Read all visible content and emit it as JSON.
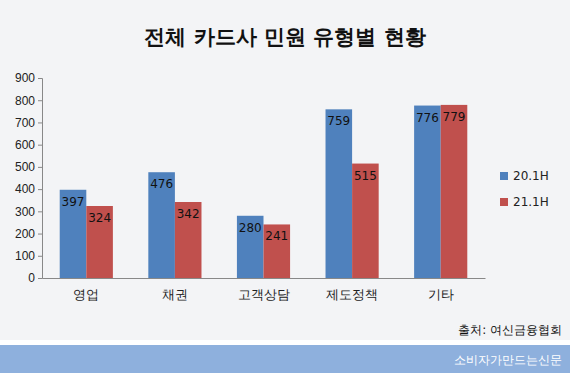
{
  "chart_data": {
    "type": "bar",
    "title": "전체 카드사 민원 유형별 현황",
    "categories": [
      "영업",
      "채권",
      "고객상담",
      "제도정책",
      "기타"
    ],
    "series": [
      {
        "name": "20.1H",
        "color": "#4f81bd",
        "values": [
          397,
          476,
          280,
          759,
          776
        ]
      },
      {
        "name": "21.1H",
        "color": "#c0504d",
        "values": [
          324,
          342,
          241,
          515,
          779
        ]
      }
    ],
    "ylim": [
      0,
      900
    ],
    "yticks": [
      0,
      100,
      200,
      300,
      400,
      500,
      600,
      700,
      800,
      900
    ],
    "grid": false,
    "legend": "right",
    "data_labels": true,
    "annotations": [
      "출처: 여신금융협회",
      "소비자가만드는신문"
    ]
  }
}
